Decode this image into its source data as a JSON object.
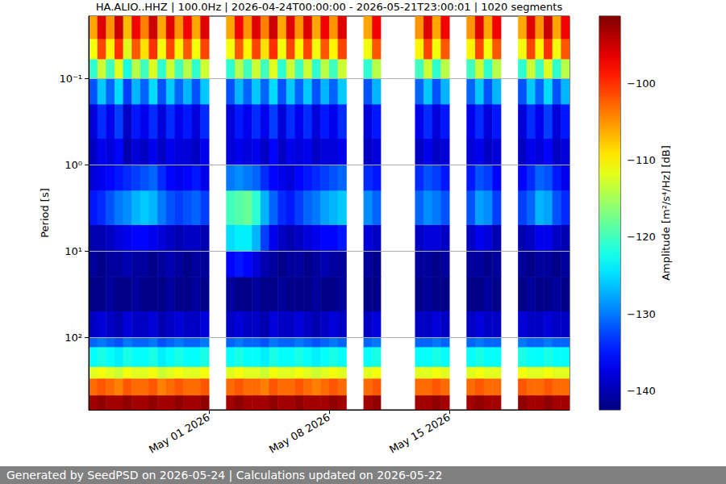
{
  "chart_data": {
    "type": "heatmap",
    "title": "HA.ALIO..HHZ | 100.0Hz | 2026-04-24T00:00:00 - 2026-05-21T23:00:01 | 1020 segments",
    "footer": "Generated by SeedPSD on 2026-05-24 | Calculations updated on 2026-05-22",
    "ylabel": "Period [s]",
    "log": "y",
    "grid": true,
    "xlim": [
      "2026-04-24T00:00:00",
      "2026-05-22T00:00:00"
    ],
    "xticks": [
      {
        "value": "2026-05-01T00:00:00",
        "label": "May 01 2026"
      },
      {
        "value": "2026-05-08T00:00:00",
        "label": "May 08 2026"
      },
      {
        "value": "2026-05-15T00:00:00",
        "label": "May 15 2026"
      }
    ],
    "ylim": [
      0.019,
      690
    ],
    "yticks": [
      {
        "value": 0.1,
        "label": "10⁻¹"
      },
      {
        "value": 1,
        "label": "10⁰"
      },
      {
        "value": 10,
        "label": "10¹"
      },
      {
        "value": 100,
        "label": "10²"
      }
    ],
    "colorbar": {
      "label": "Amplitude [m²/s⁴/Hz] [dB]",
      "range": [
        -142.5,
        -91.2
      ],
      "ticks": [
        {
          "value": -100,
          "label": "−100"
        },
        {
          "value": -110,
          "label": "−110"
        },
        {
          "value": -120,
          "label": "−120"
        },
        {
          "value": -130,
          "label": "−130"
        },
        {
          "value": -140,
          "label": "−140"
        }
      ]
    },
    "x_bins": [
      "2026-04-24T00:00:00",
      "2026-04-24T12:00:00",
      "2026-04-25T00:00:00",
      "2026-04-25T12:00:00",
      "2026-04-26T00:00:00",
      "2026-04-26T12:00:00",
      "2026-04-27T00:00:00",
      "2026-04-27T12:00:00",
      "2026-04-28T00:00:00",
      "2026-04-28T12:00:00",
      "2026-04-29T00:00:00",
      "2026-04-29T12:00:00",
      "2026-04-30T00:00:00",
      "2026-04-30T12:00:00",
      "2026-05-01T00:00:00",
      "2026-05-01T12:00:00",
      "2026-05-02T00:00:00",
      "2026-05-02T12:00:00",
      "2026-05-03T00:00:00",
      "2026-05-03T12:00:00",
      "2026-05-04T00:00:00",
      "2026-05-04T12:00:00",
      "2026-05-05T00:00:00",
      "2026-05-05T12:00:00",
      "2026-05-06T00:00:00",
      "2026-05-06T12:00:00",
      "2026-05-07T00:00:00",
      "2026-05-07T12:00:00",
      "2026-05-08T00:00:00",
      "2026-05-08T12:00:00",
      "2026-05-09T00:00:00",
      "2026-05-09T12:00:00",
      "2026-05-10T00:00:00",
      "2026-05-10T12:00:00",
      "2026-05-11T00:00:00",
      "2026-05-11T12:00:00",
      "2026-05-12T00:00:00",
      "2026-05-12T12:00:00",
      "2026-05-13T00:00:00",
      "2026-05-13T12:00:00",
      "2026-05-14T00:00:00",
      "2026-05-14T12:00:00",
      "2026-05-15T00:00:00",
      "2026-05-15T12:00:00",
      "2026-05-16T00:00:00",
      "2026-05-16T12:00:00",
      "2026-05-17T00:00:00",
      "2026-05-17T12:00:00",
      "2026-05-18T00:00:00",
      "2026-05-18T12:00:00",
      "2026-05-19T00:00:00",
      "2026-05-19T12:00:00",
      "2026-05-20T00:00:00",
      "2026-05-20T12:00:00",
      "2026-05-21T00:00:00",
      "2026-05-21T12:00:00",
      "2026-05-22T00:00:00"
    ],
    "y_bins": [
      0.019,
      0.035,
      0.06,
      0.1,
      0.2,
      0.5,
      1,
      2,
      5,
      10,
      20,
      50,
      100,
      130,
      220,
      300,
      470,
      690
    ],
    "cells": [
      [
        -106,
        -96,
        -105,
        -95,
        -107,
        -97,
        -104,
        -95,
        -106,
        -96,
        -105,
        -97,
        -106,
        -96,
        null,
        null,
        -106,
        -97,
        -105,
        -96,
        -104,
        -95,
        -106,
        -96,
        -105,
        -96,
        -106,
        -97,
        -105,
        -96,
        null,
        null,
        -106,
        -97,
        null,
        null,
        null,
        null,
        -105,
        -96,
        -106,
        -97,
        null,
        null,
        -105,
        -96,
        -106,
        -97,
        null,
        null,
        -106,
        -96,
        -105,
        -95,
        -106,
        -97
      ],
      [
        -111,
        -101,
        -110,
        -100,
        -112,
        -102,
        -109,
        -100,
        -111,
        -101,
        -110,
        -102,
        -111,
        -101,
        null,
        null,
        -111,
        -102,
        -110,
        -101,
        -109,
        -100,
        -111,
        -101,
        -110,
        -101,
        -111,
        -102,
        -110,
        -101,
        null,
        null,
        -111,
        -102,
        null,
        null,
        null,
        null,
        -110,
        -101,
        -111,
        -102,
        null,
        null,
        -110,
        -101,
        -111,
        -102,
        null,
        null,
        -111,
        -101,
        -110,
        -100,
        -111,
        -102
      ],
      [
        -121,
        -113,
        -120,
        -112,
        -122,
        -114,
        -120,
        -112,
        -121,
        -113,
        -120,
        -114,
        -121,
        -113,
        null,
        null,
        -121,
        -114,
        -120,
        -113,
        -120,
        -112,
        -121,
        -113,
        -120,
        -113,
        -121,
        -114,
        -120,
        -113,
        null,
        null,
        -121,
        -114,
        null,
        null,
        null,
        null,
        -120,
        -113,
        -121,
        -114,
        null,
        null,
        -120,
        -113,
        -121,
        -114,
        null,
        null,
        -121,
        -113,
        -120,
        -112,
        -121,
        -114
      ],
      [
        -132,
        -126,
        -131,
        -125,
        -133,
        -127,
        -131,
        -125,
        -132,
        -126,
        -131,
        -127,
        -132,
        -126,
        null,
        null,
        -132,
        -127,
        -131,
        -126,
        -131,
        -125,
        -132,
        -126,
        -131,
        -126,
        -132,
        -127,
        -131,
        -126,
        null,
        null,
        -132,
        -127,
        null,
        null,
        null,
        null,
        -131,
        -126,
        -132,
        -127,
        null,
        null,
        -131,
        -126,
        -132,
        -127,
        null,
        null,
        -132,
        -126,
        -131,
        -125,
        -132,
        -127
      ],
      [
        -138,
        -134,
        -137,
        -133,
        -139,
        -135,
        -137,
        -134,
        -138,
        -134,
        -137,
        -135,
        -138,
        -134,
        null,
        null,
        -138,
        -135,
        -137,
        -134,
        -137,
        -133,
        -138,
        -134,
        -137,
        -134,
        -138,
        -135,
        -137,
        -134,
        null,
        null,
        -138,
        -135,
        null,
        null,
        null,
        null,
        -137,
        -134,
        -138,
        -135,
        null,
        null,
        -137,
        -134,
        -138,
        -135,
        null,
        null,
        -138,
        -134,
        -137,
        -133,
        -138,
        -135
      ],
      [
        -139,
        -137,
        -138,
        -136,
        -140,
        -138,
        -139,
        -137,
        -139,
        -137,
        -138,
        -138,
        -139,
        -137,
        null,
        null,
        -138,
        -137,
        -138,
        -137,
        -139,
        -136,
        -139,
        -137,
        -138,
        -137,
        -139,
        -138,
        -138,
        -137,
        null,
        null,
        -139,
        -138,
        null,
        null,
        null,
        null,
        -139,
        -137,
        -139,
        -138,
        null,
        null,
        -138,
        -137,
        -139,
        -138,
        null,
        null,
        -139,
        -137,
        -138,
        -136,
        -139,
        -138
      ],
      [
        -138,
        -137,
        -136,
        -135,
        -134,
        -133,
        -132,
        -131,
        -134,
        -136,
        -137,
        -136,
        -135,
        -137,
        null,
        null,
        -130,
        -129,
        -130,
        -131,
        -134,
        -136,
        -137,
        -138,
        -136,
        -135,
        -134,
        -133,
        -132,
        -131,
        null,
        null,
        -134,
        -135,
        null,
        null,
        null,
        null,
        -134,
        -132,
        -133,
        -135,
        null,
        null,
        -135,
        -132,
        -133,
        -136,
        null,
        null,
        -136,
        -134,
        -131,
        -132,
        -135,
        -137
      ],
      [
        -135,
        -134,
        -132,
        -130,
        -129,
        -127,
        -126,
        -127,
        -130,
        -132,
        -133,
        -132,
        -131,
        -133,
        null,
        null,
        -120,
        -119,
        -118,
        -121,
        -127,
        -131,
        -134,
        -135,
        -133,
        -131,
        -130,
        -128,
        -127,
        -126,
        null,
        null,
        -129,
        -131,
        null,
        null,
        null,
        null,
        -131,
        -129,
        -130,
        -132,
        null,
        null,
        -132,
        -128,
        -129,
        -133,
        null,
        null,
        -133,
        -131,
        -127,
        -128,
        -132,
        -134
      ],
      [
        -140,
        -140,
        -139,
        -138,
        -137,
        -136,
        -136,
        -137,
        -138,
        -139,
        -140,
        -139,
        -139,
        -140,
        null,
        null,
        -125,
        -124,
        -124,
        -127,
        -133,
        -137,
        -139,
        -140,
        -139,
        -138,
        -137,
        -136,
        -136,
        -135,
        null,
        null,
        -138,
        -139,
        null,
        null,
        null,
        null,
        -139,
        -138,
        -138,
        -139,
        null,
        null,
        -139,
        -137,
        -138,
        -140,
        null,
        null,
        -140,
        -139,
        -137,
        -137,
        -139,
        -140
      ],
      [
        -141,
        -142,
        -141,
        -141,
        -140,
        -141,
        -141,
        -142,
        -141,
        -140,
        -141,
        -142,
        -141,
        -141,
        null,
        null,
        -136,
        -135,
        -136,
        -138,
        -140,
        -141,
        -142,
        -141,
        -141,
        -142,
        -141,
        -140,
        -141,
        -141,
        null,
        null,
        -141,
        -142,
        null,
        null,
        null,
        null,
        -141,
        -141,
        -142,
        -141,
        null,
        null,
        -141,
        -141,
        -142,
        -141,
        null,
        null,
        -141,
        -142,
        -141,
        -141,
        -142,
        -141
      ],
      [
        -142,
        -142,
        -141,
        -142,
        -142,
        -141,
        -142,
        -142,
        -142,
        -141,
        -142,
        -142,
        -141,
        -142,
        null,
        null,
        -141,
        -142,
        -142,
        -141,
        -142,
        -142,
        -141,
        -142,
        -142,
        -142,
        -141,
        -142,
        -142,
        -141,
        null,
        null,
        -142,
        -142,
        null,
        null,
        null,
        null,
        -142,
        -141,
        -142,
        -142,
        null,
        null,
        -142,
        -142,
        -141,
        -142,
        null,
        null,
        -142,
        -141,
        -142,
        -142,
        -141,
        -142
      ],
      [
        -139,
        -138,
        -139,
        -140,
        -138,
        -139,
        -139,
        -138,
        -140,
        -139,
        -138,
        -139,
        -139,
        -138,
        null,
        null,
        -139,
        -138,
        -139,
        -139,
        -140,
        -138,
        -139,
        -139,
        -138,
        -139,
        -140,
        -139,
        -138,
        -139,
        null,
        null,
        -139,
        -138,
        null,
        null,
        null,
        null,
        -139,
        -139,
        -138,
        -139,
        null,
        null,
        -139,
        -138,
        -139,
        -139,
        null,
        null,
        -138,
        -139,
        -139,
        -138,
        -139,
        -139
      ],
      [
        -131,
        -130,
        -131,
        -132,
        -130,
        -131,
        -131,
        -130,
        -132,
        -131,
        -130,
        -131,
        -131,
        -130,
        null,
        null,
        -131,
        -130,
        -131,
        -131,
        -132,
        -130,
        -131,
        -131,
        -130,
        -131,
        -132,
        -131,
        -130,
        -131,
        null,
        null,
        -131,
        -130,
        null,
        null,
        null,
        null,
        -131,
        -131,
        -130,
        -131,
        null,
        null,
        -131,
        -130,
        -131,
        -131,
        null,
        null,
        -130,
        -131,
        -131,
        -130,
        -131,
        -131
      ],
      [
        -123,
        -122,
        -123,
        -124,
        -122,
        -123,
        -123,
        -122,
        -124,
        -123,
        -122,
        -123,
        -123,
        -122,
        null,
        null,
        -123,
        -122,
        -123,
        -123,
        -124,
        -122,
        -123,
        -123,
        -122,
        -123,
        -124,
        -123,
        -122,
        -123,
        null,
        null,
        -123,
        -122,
        null,
        null,
        null,
        null,
        -123,
        -123,
        -122,
        -123,
        null,
        null,
        -123,
        -122,
        -123,
        -123,
        null,
        null,
        -122,
        -123,
        -123,
        -122,
        -123,
        -123
      ],
      [
        -112,
        -111,
        -112,
        -113,
        -111,
        -112,
        -112,
        -111,
        -113,
        -112,
        -111,
        -112,
        -112,
        -111,
        null,
        null,
        -112,
        -111,
        -112,
        -112,
        -113,
        -111,
        -112,
        -112,
        -111,
        -112,
        -113,
        -112,
        -111,
        -112,
        null,
        null,
        -112,
        -111,
        null,
        null,
        null,
        null,
        -112,
        -112,
        -111,
        -112,
        null,
        null,
        -112,
        -111,
        -112,
        -112,
        null,
        null,
        -111,
        -112,
        -112,
        -111,
        -112,
        -112
      ],
      [
        -103,
        -102,
        -103,
        -104,
        -102,
        -103,
        -103,
        -102,
        -104,
        -103,
        -102,
        -103,
        -103,
        -102,
        null,
        null,
        -103,
        -102,
        -103,
        -103,
        -104,
        -102,
        -103,
        -103,
        -102,
        -103,
        -104,
        -103,
        -102,
        -103,
        null,
        null,
        -103,
        -102,
        null,
        null,
        null,
        null,
        -103,
        -103,
        -102,
        -103,
        null,
        null,
        -103,
        -102,
        -103,
        -103,
        null,
        null,
        -102,
        -103,
        -103,
        -102,
        -103,
        -103
      ],
      [
        -93,
        -92,
        -93,
        -93,
        -92,
        -93,
        -93,
        -92,
        -93,
        -93,
        -92,
        -93,
        -93,
        -92,
        null,
        null,
        -93,
        -92,
        -93,
        -93,
        -93,
        -92,
        -93,
        -93,
        -92,
        -93,
        -93,
        -93,
        -92,
        -93,
        null,
        null,
        -93,
        -92,
        null,
        null,
        null,
        null,
        -93,
        -93,
        -92,
        -93,
        null,
        null,
        -93,
        -92,
        -93,
        -93,
        null,
        null,
        -92,
        -93,
        -93,
        -92,
        -93,
        -93
      ]
    ]
  }
}
